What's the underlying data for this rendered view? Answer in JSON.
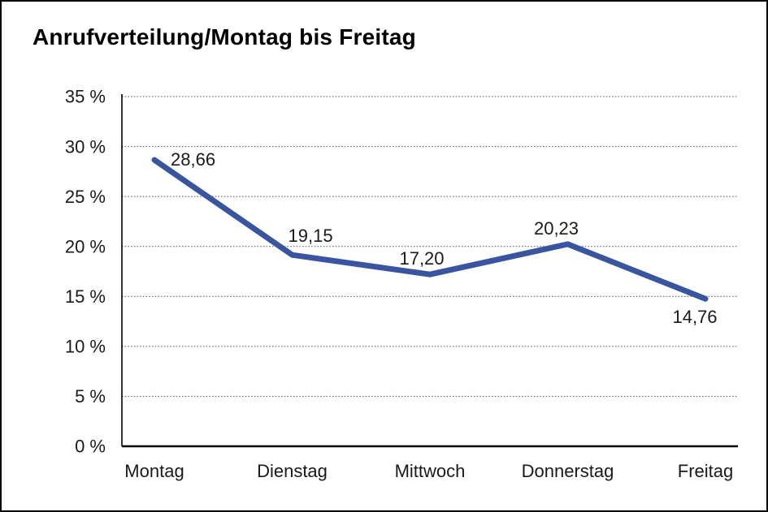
{
  "title": "Anrufverteilung/Montag bis Freitag",
  "chart_data": {
    "type": "line",
    "title": "Anrufverteilung/Montag bis Freitag",
    "categories": [
      "Montag",
      "Dienstag",
      "Mittwoch",
      "Donnerstag",
      "Freitag"
    ],
    "series": [
      {
        "name": "Anrufverteilung",
        "values": [
          28.66,
          19.15,
          17.2,
          20.23,
          14.76
        ]
      }
    ],
    "data_labels": [
      "28,66",
      "19,15",
      "17,20",
      "20,23",
      "14,76"
    ],
    "y_tick_labels": [
      "0 %",
      "5 %",
      "10 %",
      "15 %",
      "20 %",
      "25 %",
      "30 %",
      "35 %"
    ],
    "y_tick_values": [
      0,
      5,
      10,
      15,
      20,
      25,
      30,
      35
    ],
    "ylim": [
      0,
      35
    ],
    "xlabel": "",
    "ylabel": "",
    "grid": "horizontal-dotted",
    "legend_position": "none",
    "line_color": "#3A55A0",
    "axis_color": "#000000",
    "gridline_color": "#4a4a4a",
    "text_color": "#1a1a1a"
  }
}
